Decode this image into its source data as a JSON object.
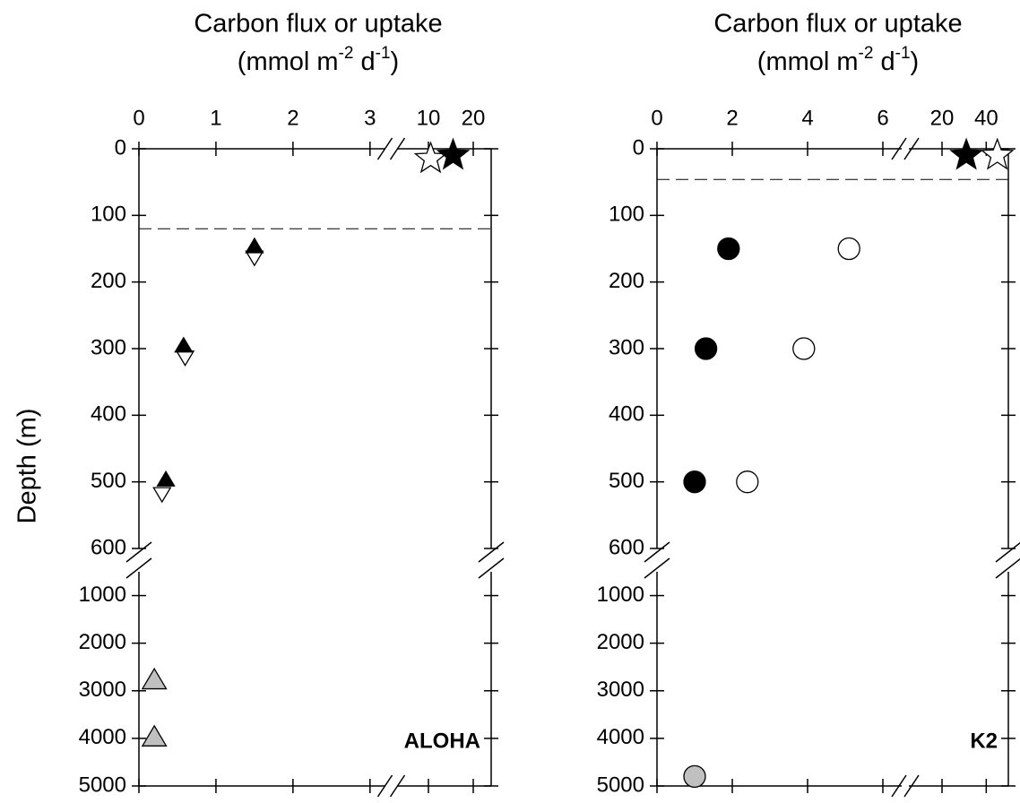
{
  "chart_data": [
    {
      "type": "scatter",
      "title": "Carbon flux or uptake",
      "subtitle": [
        "(mmol m",
        "-2",
        " d",
        "-1",
        ")"
      ],
      "ylabel": "Depth (m)",
      "panel_label": "ALOHA",
      "x_segments": [
        {
          "xlim": [
            0,
            3.2
          ],
          "xticks": [
            0,
            1,
            2,
            3
          ]
        },
        {
          "xlim": [
            3,
            24
          ],
          "xticks": [
            10,
            20
          ]
        }
      ],
      "y_segments": [
        {
          "ylim": [
            0,
            600
          ],
          "yticks": [
            0,
            100,
            200,
            300,
            400,
            500,
            600
          ]
        },
        {
          "ylim": [
            500,
            5000
          ],
          "yticks": [
            1000,
            2000,
            3000,
            4000,
            5000
          ]
        }
      ],
      "hline": 120,
      "series": [
        {
          "marker": "star",
          "color": "#ffffff",
          "x": [
            10.5
          ],
          "values": [
            15
          ]
        },
        {
          "marker": "star",
          "color": "#000000",
          "x": [
            15.5
          ],
          "values": [
            10
          ]
        },
        {
          "marker": "triangle-down",
          "color": "#ffffff",
          "x": [
            1.5,
            0.6,
            0.3
          ],
          "values": [
            155,
            305,
            510
          ]
        },
        {
          "marker": "triangle-up",
          "color": "#000000",
          "x": [
            1.5,
            0.58,
            0.35
          ],
          "values": [
            148,
            297,
            498
          ]
        },
        {
          "marker": "triangle-up",
          "color": "#c0c0c0",
          "x": [
            0.2,
            0.2
          ],
          "values": [
            2800,
            4000
          ]
        }
      ]
    },
    {
      "type": "scatter",
      "title": "Carbon flux or uptake",
      "subtitle": [
        "(mmol m",
        "-2",
        " d",
        "-1",
        ")"
      ],
      "panel_label": "K2",
      "x_segments": [
        {
          "xlim": [
            0,
            6.5
          ],
          "xticks": [
            0,
            2,
            4,
            6
          ]
        },
        {
          "xlim": [
            5,
            50
          ],
          "xticks": [
            20,
            40
          ]
        }
      ],
      "y_segments": [
        {
          "ylim": [
            0,
            600
          ],
          "yticks": [
            0,
            100,
            200,
            300,
            400,
            500,
            600
          ]
        },
        {
          "ylim": [
            500,
            5000
          ],
          "yticks": [
            1000,
            2000,
            3000,
            4000,
            5000
          ]
        }
      ],
      "hline": 46,
      "series": [
        {
          "marker": "star",
          "color": "#000000",
          "x": [
            31
          ],
          "values": [
            10
          ]
        },
        {
          "marker": "star",
          "color": "#ffffff",
          "x": [
            45
          ],
          "values": [
            10
          ]
        },
        {
          "marker": "circle",
          "color": "#000000",
          "x": [
            1.9,
            1.3,
            1.0
          ],
          "values": [
            150,
            300,
            500
          ]
        },
        {
          "marker": "circle",
          "color": "#ffffff",
          "x": [
            5.1,
            3.9,
            2.4
          ],
          "values": [
            150,
            300,
            500
          ]
        },
        {
          "marker": "circle",
          "color": "#c0c0c0",
          "x": [
            1.0
          ],
          "values": [
            4800
          ]
        }
      ]
    }
  ]
}
